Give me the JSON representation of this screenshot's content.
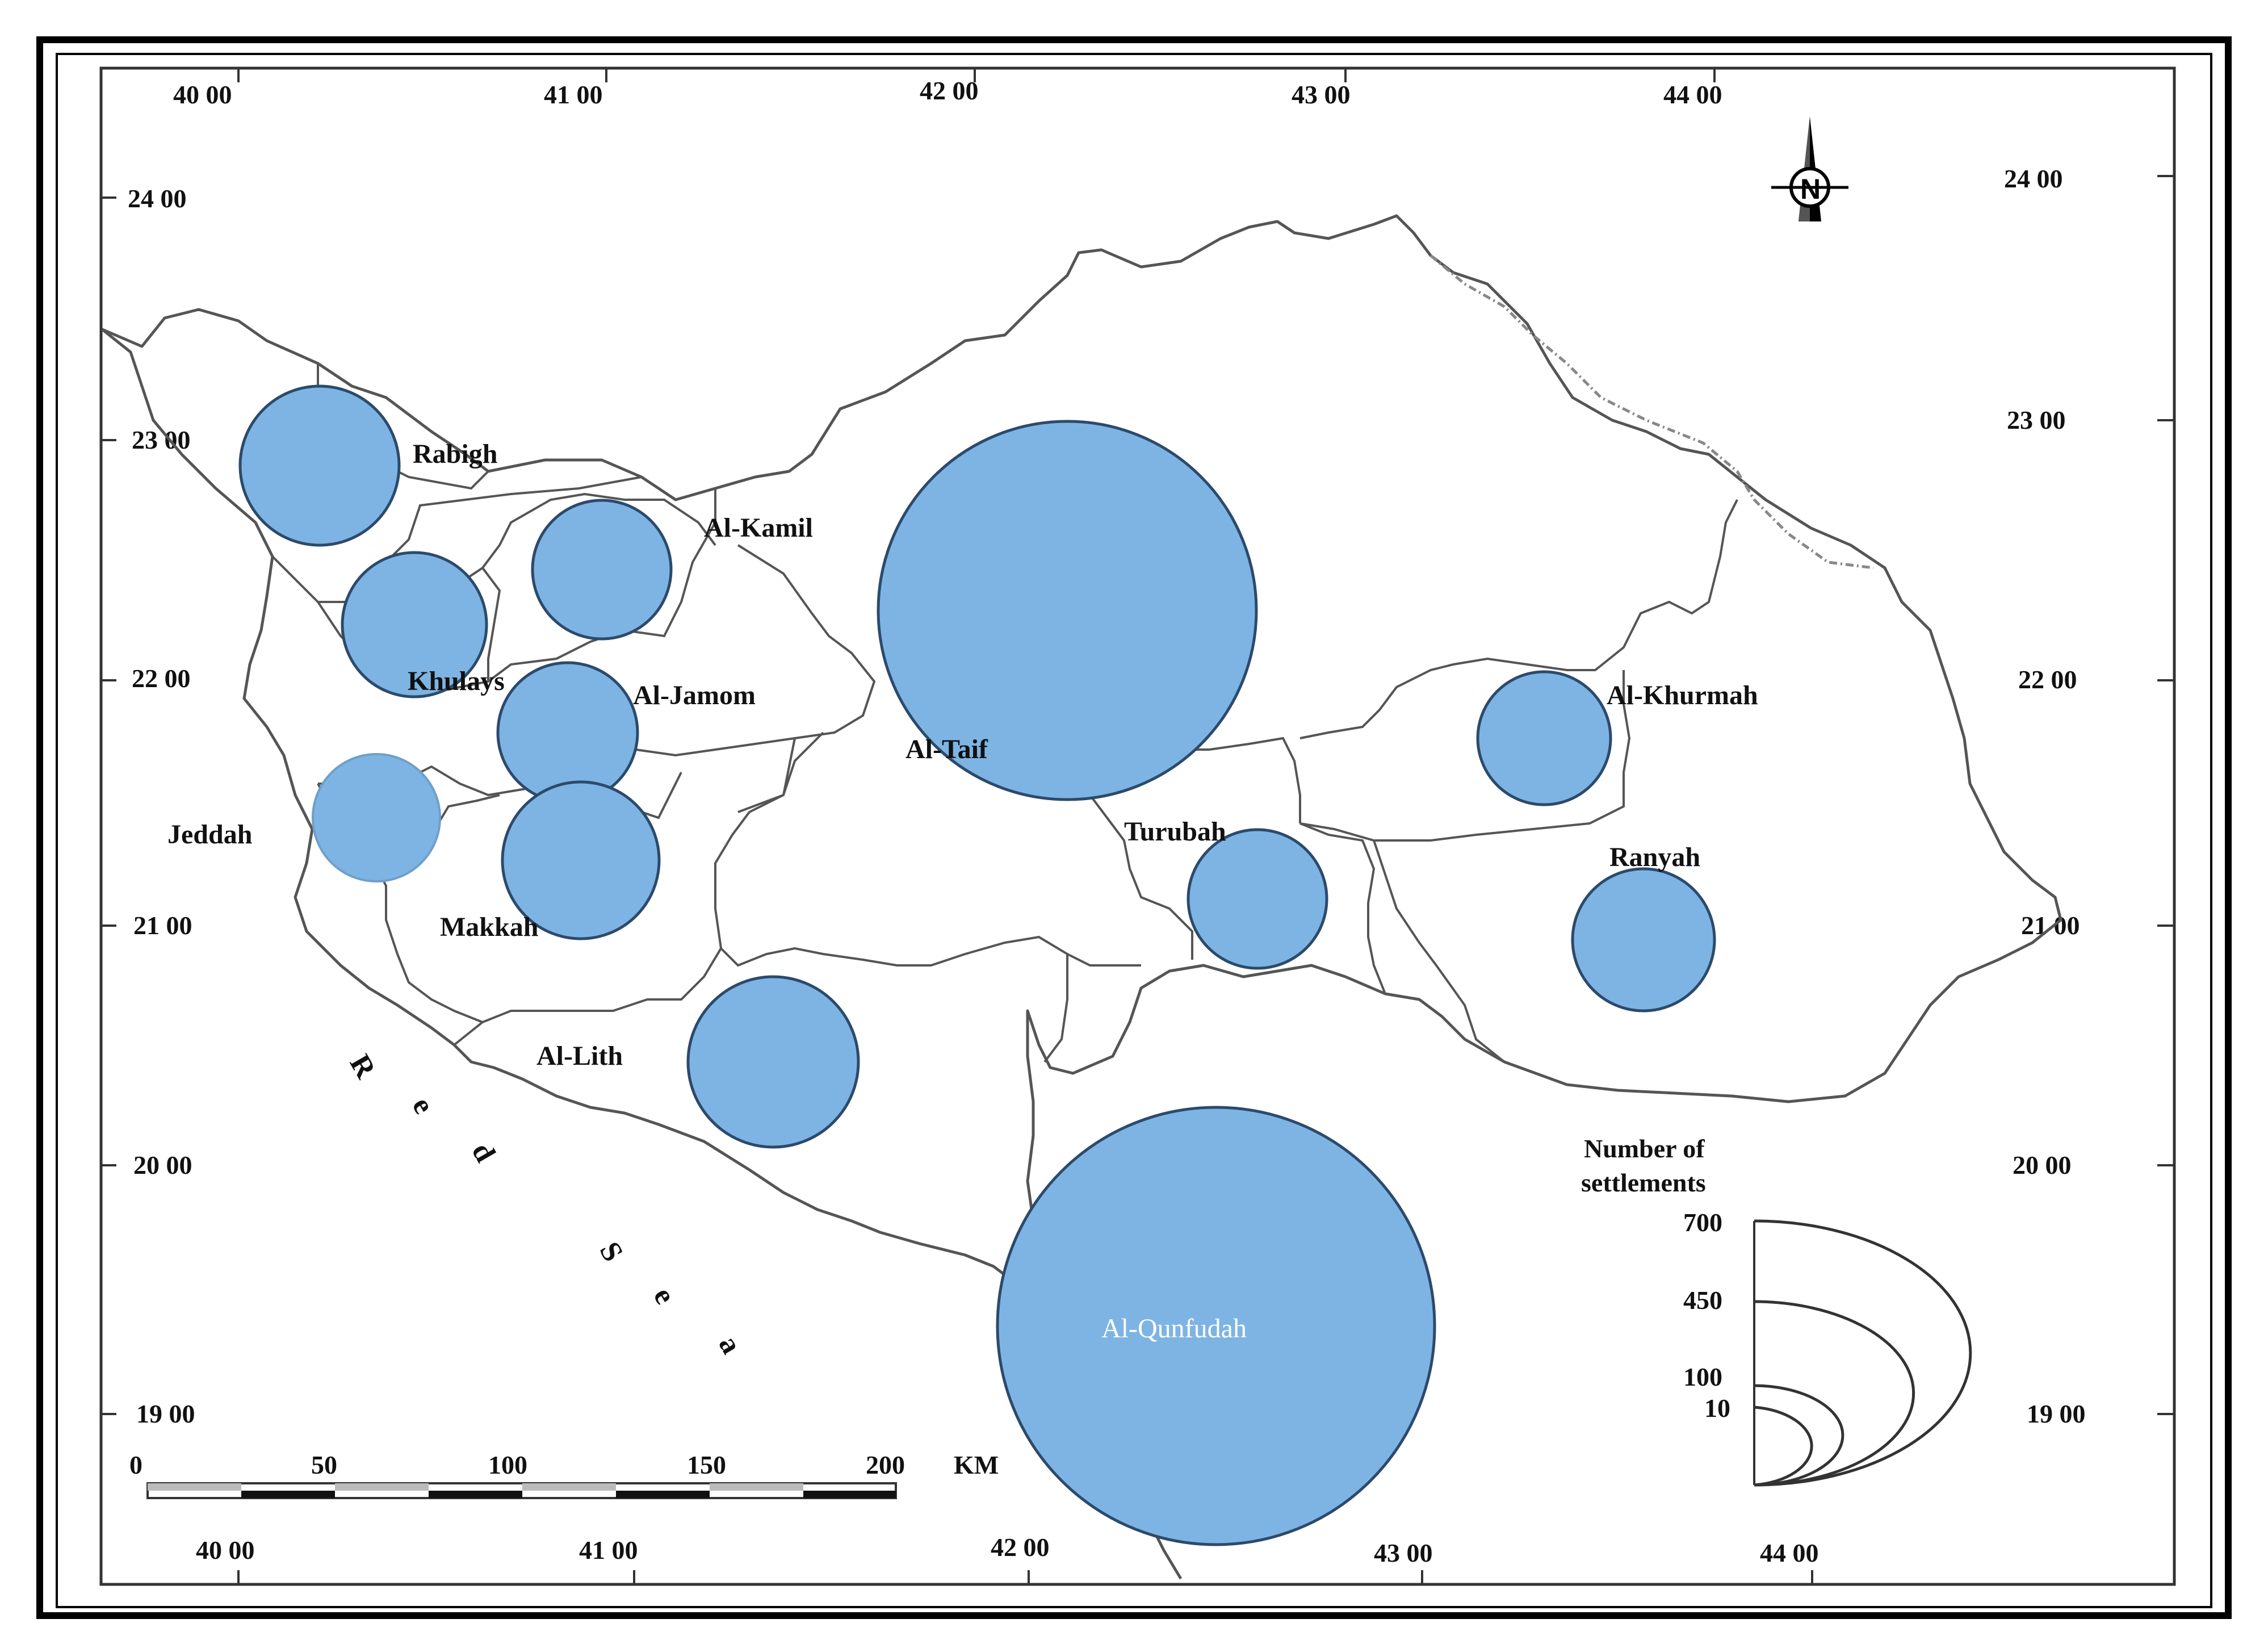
{
  "map": {
    "top_lon_labels": [
      "40 00",
      "41 00",
      "42 00",
      "43 00",
      "44 00"
    ],
    "bottom_lon_labels": [
      "40 00",
      "41 00",
      "42 00",
      "43 00",
      "44 00"
    ],
    "left_lat_labels": [
      "24 00",
      "23 00",
      "22 00",
      "21 00",
      "20 00",
      "19 00"
    ],
    "right_lat_labels": [
      "24 00",
      "23 00",
      "22 00",
      "21 00",
      "20 00",
      "19 00"
    ],
    "north_arrow_letter": "N",
    "sea_letters": [
      "R",
      "e",
      "d",
      "S",
      "e",
      "a"
    ],
    "bubble_color": "#7db4e3",
    "bubble_stroke": "#2c4a6b",
    "regions": [
      {
        "name": "Rabigh"
      },
      {
        "name": "Al-Kamil"
      },
      {
        "name": "Khulays"
      },
      {
        "name": "Al-Jamom"
      },
      {
        "name": "Al-Taif"
      },
      {
        "name": "Al-Khurmah"
      },
      {
        "name": "Jeddah"
      },
      {
        "name": "Turubah"
      },
      {
        "name": "Ranyah"
      },
      {
        "name": "Makkah"
      },
      {
        "name": "Al-Lith"
      },
      {
        "name": "Al-Qunfudah"
      }
    ],
    "scale_bar": {
      "ticks": [
        "0",
        "50",
        "100",
        "150",
        "200"
      ],
      "unit": "KM"
    },
    "legend": {
      "title_line1": "Number of",
      "title_line2": "settlements",
      "values": [
        "700",
        "450",
        "100",
        "10"
      ]
    }
  }
}
